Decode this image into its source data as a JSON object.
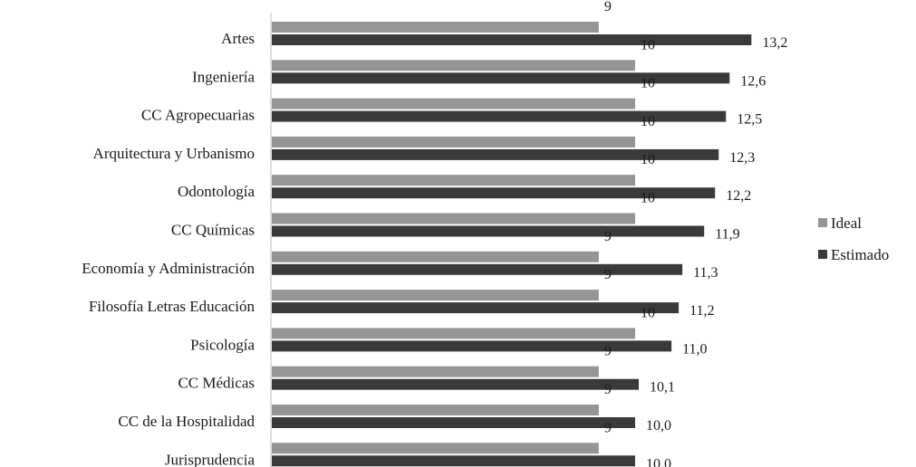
{
  "chart_data": {
    "type": "bar",
    "orientation": "horizontal",
    "categories": [
      "Artes",
      "Ingeniería",
      "CC Agropecuarias",
      "Arquitectura y Urbanismo",
      "Odontología",
      "CC Químicas",
      "Economía y Administración",
      "Filosofía Letras Educación",
      "Psicología",
      "CC Médicas",
      "CC de la Hospitalidad",
      "Jurisprudencia"
    ],
    "series": [
      {
        "name": "Ideal",
        "color": "#959595",
        "values": [
          9,
          10,
          10,
          10,
          10,
          10,
          9,
          9,
          10,
          9,
          9,
          9
        ],
        "labels": [
          "9",
          "10",
          "10",
          "10",
          "10",
          "10",
          "9",
          "9",
          "10",
          "9",
          "9",
          "9"
        ]
      },
      {
        "name": "Estimado",
        "color": "#3a3a3a",
        "values": [
          13.2,
          12.6,
          12.5,
          12.3,
          12.2,
          11.9,
          11.3,
          11.2,
          11.0,
          10.1,
          10.0,
          10.0
        ],
        "labels": [
          "13,2",
          "12,6",
          "12,5",
          "12,3",
          "12,2",
          "11,9",
          "11,3",
          "11,2",
          "11,0",
          "10,1",
          "10,0",
          "10.0"
        ]
      }
    ],
    "xlim": [
      0,
      13.2
    ],
    "grid": false,
    "legend_position": "right"
  }
}
